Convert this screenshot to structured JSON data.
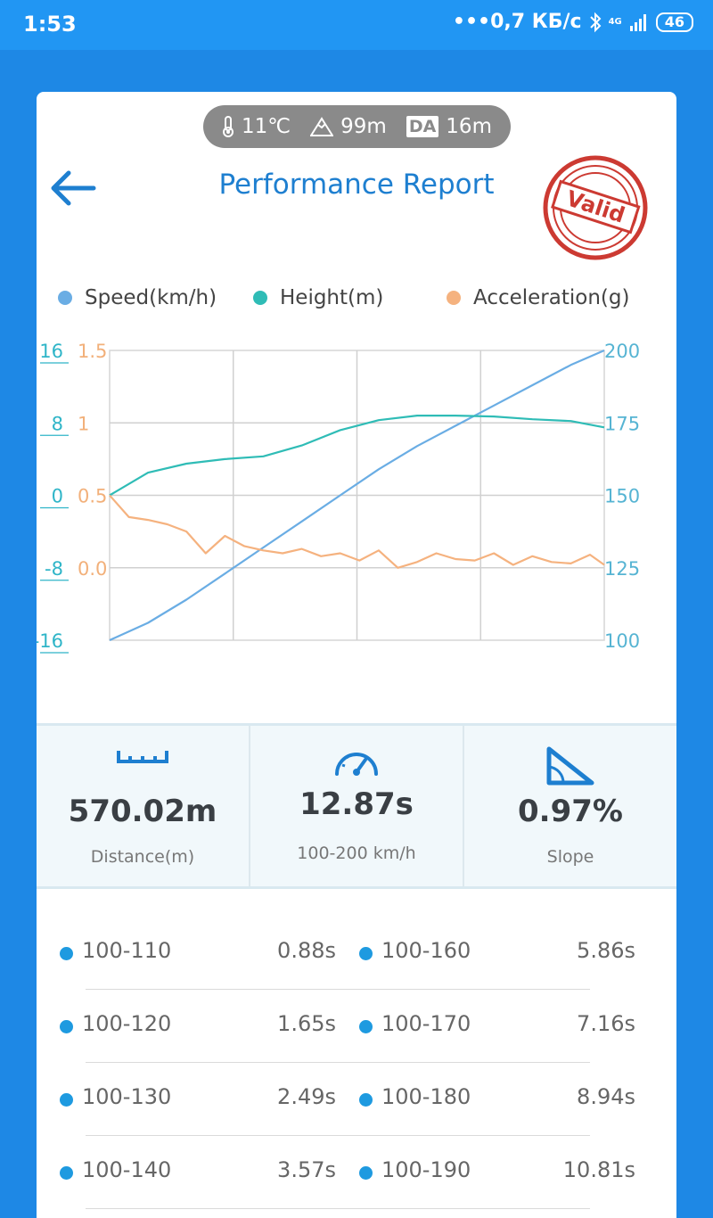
{
  "status": {
    "time": "1:53",
    "speed": "0,7 КБ/с",
    "network": "4G",
    "battery": "46"
  },
  "weather": {
    "temperature": "11℃",
    "altitude": "99m",
    "da_label": "DA",
    "density_altitude": "16m"
  },
  "header": {
    "title": "Performance Report",
    "stamp_text": "Valid"
  },
  "legend": [
    {
      "label": "Speed(km/h)",
      "color": "#6aade4"
    },
    {
      "label": "Height(m)",
      "color": "#2fbcb6"
    },
    {
      "label": "Acceleration(g)",
      "color": "#f5b27f"
    }
  ],
  "chart_data": {
    "type": "line",
    "axes": {
      "height_ticks": [
        "16",
        "8",
        "0",
        "-8",
        "-16"
      ],
      "accel_ticks": [
        "1.5",
        "1",
        "0.5",
        "0.0"
      ],
      "speed_ticks": [
        "200",
        "175",
        "150",
        "125",
        "100"
      ],
      "speed_range": [
        100,
        200
      ],
      "height_range": [
        -16,
        16
      ],
      "accel_range": [
        -0.5,
        1.5
      ]
    },
    "series": [
      {
        "name": "Speed(km/h)",
        "x": [
          0,
          1,
          2,
          3,
          4,
          5,
          6,
          7,
          8,
          9,
          10,
          11,
          12,
          12.87
        ],
        "values": [
          100,
          106,
          114,
          123,
          132,
          141,
          150,
          159,
          167,
          174,
          181,
          188,
          195,
          200
        ],
        "color": "#6aade4"
      },
      {
        "name": "Height(m)",
        "x": [
          0,
          1,
          2,
          3,
          4,
          5,
          6,
          7,
          8,
          9,
          10,
          11,
          12,
          12.87
        ],
        "values": [
          0,
          2.5,
          3.5,
          4,
          4.3,
          5.5,
          7.2,
          8.3,
          8.8,
          8.8,
          8.7,
          8.4,
          8.2,
          7.5
        ],
        "color": "#2fbcb6"
      },
      {
        "name": "Acceleration(g)",
        "x": [
          0,
          0.5,
          1,
          1.5,
          2,
          2.5,
          3,
          3.5,
          4,
          4.5,
          5,
          5.5,
          6,
          6.5,
          7,
          7.5,
          8,
          8.5,
          9,
          9.5,
          10,
          10.5,
          11,
          11.5,
          12,
          12.5,
          12.87
        ],
        "values": [
          0.5,
          0.35,
          0.33,
          0.3,
          0.25,
          0.1,
          0.22,
          0.15,
          0.12,
          0.1,
          0.13,
          0.08,
          0.1,
          0.05,
          0.12,
          0.0,
          0.04,
          0.1,
          0.06,
          0.05,
          0.1,
          0.02,
          0.08,
          0.04,
          0.03,
          0.09,
          0.02
        ],
        "color": "#f5b27f"
      }
    ]
  },
  "stats": [
    {
      "value": "570.02m",
      "label": "Distance(m)",
      "icon": "ruler-icon"
    },
    {
      "value": "12.87s",
      "label": "100-200 km/h",
      "icon": "speedometer-icon"
    },
    {
      "value": "0.97%",
      "label": "Slope",
      "icon": "slope-icon"
    }
  ],
  "splits": [
    {
      "left_range": "100-110",
      "left_time": "0.88s",
      "right_range": "100-160",
      "right_time": "5.86s"
    },
    {
      "left_range": "100-120",
      "left_time": "1.65s",
      "right_range": "100-170",
      "right_time": "7.16s"
    },
    {
      "left_range": "100-130",
      "left_time": "2.49s",
      "right_range": "100-180",
      "right_time": "8.94s"
    },
    {
      "left_range": "100-140",
      "left_time": "3.57s",
      "right_range": "100-190",
      "right_time": "10.81s"
    }
  ]
}
